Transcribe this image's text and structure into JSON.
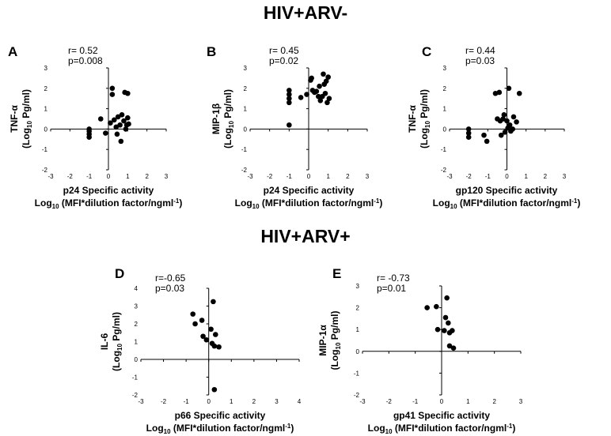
{
  "titles": {
    "top": "HIV+ARV-",
    "bottom": "HIV+ARV+"
  },
  "chart_data": [
    {
      "id": "A",
      "type": "scatter",
      "stats": [
        "r= 0.52",
        "p=0.008"
      ],
      "ylabel": [
        "TNF-α",
        "(Log",
        "10",
        " Pg/ml)"
      ],
      "xlabel": [
        "p24 Specific activity",
        "Log",
        "10",
        " (MFI*dilution factor/ngml",
        "-1",
        ")"
      ],
      "xlim": [
        -3,
        3
      ],
      "ylim": [
        -2,
        3
      ],
      "xticks": [
        -3,
        -2,
        -1,
        0,
        1,
        2,
        3
      ],
      "yticks": [
        -2,
        -1,
        0,
        1,
        2,
        3
      ],
      "points": [
        [
          -1.0,
          -0.4
        ],
        [
          -1.0,
          -0.25
        ],
        [
          -1.0,
          -0.1
        ],
        [
          -1.0,
          0.0
        ],
        [
          -0.4,
          0.5
        ],
        [
          -0.15,
          -0.2
        ],
        [
          0.1,
          0.3
        ],
        [
          0.2,
          2.0
        ],
        [
          0.2,
          1.7
        ],
        [
          0.3,
          0.45
        ],
        [
          0.4,
          0.1
        ],
        [
          0.45,
          -0.25
        ],
        [
          0.5,
          0.6
        ],
        [
          0.6,
          0.2
        ],
        [
          0.65,
          -0.6
        ],
        [
          0.7,
          0.7
        ],
        [
          0.8,
          0.4
        ],
        [
          0.85,
          1.8
        ],
        [
          0.9,
          0.0
        ],
        [
          0.95,
          0.2
        ],
        [
          1.0,
          1.75
        ],
        [
          1.0,
          0.55
        ],
        [
          1.05,
          0.25
        ]
      ]
    },
    {
      "id": "B",
      "type": "scatter",
      "stats": [
        "r= 0.45",
        "p=0.02"
      ],
      "ylabel": [
        "MIP-1β",
        "(Log",
        "10",
        " Pg/ml)"
      ],
      "xlabel": [
        "p24 Specific activity",
        "Log",
        "10",
        " (MFI*dilution factor/ngml",
        "-1",
        ")"
      ],
      "xlim": [
        -3,
        3
      ],
      "ylim": [
        -2,
        3
      ],
      "xticks": [
        -3,
        -2,
        -1,
        0,
        1,
        2,
        3
      ],
      "yticks": [
        -2,
        -1,
        0,
        1,
        2,
        3
      ],
      "points": [
        [
          -1.0,
          0.2
        ],
        [
          -1.0,
          1.3
        ],
        [
          -1.0,
          1.5
        ],
        [
          -1.0,
          1.7
        ],
        [
          -1.0,
          1.9
        ],
        [
          -0.4,
          1.55
        ],
        [
          -0.1,
          1.7
        ],
        [
          0.1,
          2.4
        ],
        [
          0.15,
          2.5
        ],
        [
          0.2,
          1.9
        ],
        [
          0.3,
          1.8
        ],
        [
          0.4,
          1.85
        ],
        [
          0.5,
          1.6
        ],
        [
          0.55,
          2.1
        ],
        [
          0.6,
          1.4
        ],
        [
          0.7,
          1.6
        ],
        [
          0.75,
          2.7
        ],
        [
          0.8,
          2.2
        ],
        [
          0.85,
          1.75
        ],
        [
          0.9,
          2.35
        ],
        [
          0.95,
          1.3
        ],
        [
          1.0,
          2.55
        ],
        [
          1.05,
          1.5
        ]
      ]
    },
    {
      "id": "C",
      "type": "scatter",
      "stats": [
        "r= 0.44",
        "p=0.03"
      ],
      "ylabel": [
        "TNF-α",
        "(Log",
        "10",
        " Pg/ml)"
      ],
      "xlabel": [
        "gp120 Specific activity",
        "Log",
        "10",
        " (MFI*dilution factor/ngml",
        "-1",
        ")"
      ],
      "xlim": [
        -3,
        3
      ],
      "ylim": [
        -2,
        3
      ],
      "xticks": [
        -3,
        -2,
        -1,
        0,
        1,
        2,
        3
      ],
      "yticks": [
        -2,
        -1,
        0,
        1,
        2,
        3
      ],
      "points": [
        [
          -2.0,
          -0.4
        ],
        [
          -2.0,
          -0.2
        ],
        [
          -2.0,
          0.0
        ],
        [
          -1.2,
          -0.3
        ],
        [
          -1.05,
          -0.6
        ],
        [
          -0.6,
          1.75
        ],
        [
          -0.5,
          0.5
        ],
        [
          -0.4,
          1.8
        ],
        [
          -0.35,
          0.4
        ],
        [
          -0.3,
          -0.3
        ],
        [
          -0.2,
          0.5
        ],
        [
          -0.15,
          0.7
        ],
        [
          -0.1,
          -0.15
        ],
        [
          0.0,
          0.4
        ],
        [
          0.05,
          0.05
        ],
        [
          0.1,
          2.0
        ],
        [
          0.15,
          0.2
        ],
        [
          0.2,
          -0.1
        ],
        [
          0.3,
          0.0
        ],
        [
          0.35,
          0.6
        ],
        [
          0.5,
          0.35
        ],
        [
          0.65,
          1.75
        ]
      ]
    },
    {
      "id": "D",
      "type": "scatter",
      "stats": [
        "r=-0.65",
        "p=0.03"
      ],
      "ylabel": [
        "IL-6",
        "(Log",
        "10",
        " Pg/ml)"
      ],
      "xlabel": [
        "p66 Specific activity",
        "Log",
        "10",
        " (MFI*dilution factor/ngml",
        "-1",
        ")"
      ],
      "xlim": [
        -3,
        4
      ],
      "ylim": [
        -2,
        4
      ],
      "xticks": [
        -3,
        -2,
        -1,
        0,
        1,
        2,
        3,
        4
      ],
      "yticks": [
        -2,
        -1,
        0,
        1,
        2,
        3,
        4
      ],
      "points": [
        [
          -0.7,
          2.55
        ],
        [
          -0.6,
          2.0
        ],
        [
          -0.3,
          2.2
        ],
        [
          -0.25,
          1.3
        ],
        [
          -0.1,
          1.1
        ],
        [
          0.1,
          1.7
        ],
        [
          0.15,
          0.9
        ],
        [
          0.2,
          3.25
        ],
        [
          0.25,
          0.75
        ],
        [
          0.3,
          1.4
        ],
        [
          0.45,
          0.7
        ],
        [
          0.25,
          -1.7
        ]
      ]
    },
    {
      "id": "E",
      "type": "scatter",
      "stats": [
        "r= -0.73",
        "p=0.01"
      ],
      "ylabel": [
        "MIP-1α",
        "(Log",
        "10",
        " Pg/ml)"
      ],
      "xlabel": [
        "gp41 Specific activity",
        "Log",
        "10",
        " (MFI*dilution factor/ngml",
        "-1",
        ")"
      ],
      "xlim": [
        -3,
        3
      ],
      "ylim": [
        -2,
        3
      ],
      "xticks": [
        -3,
        -2,
        -1,
        0,
        1,
        2,
        3
      ],
      "yticks": [
        -2,
        -1,
        0,
        1,
        2,
        3
      ],
      "points": [
        [
          -0.55,
          2.0
        ],
        [
          -0.2,
          2.05
        ],
        [
          -0.15,
          1.0
        ],
        [
          0.1,
          0.95
        ],
        [
          0.15,
          1.55
        ],
        [
          0.2,
          2.45
        ],
        [
          0.25,
          1.3
        ],
        [
          0.3,
          0.85
        ],
        [
          0.3,
          0.25
        ],
        [
          0.4,
          0.95
        ],
        [
          0.45,
          0.15
        ]
      ]
    }
  ]
}
